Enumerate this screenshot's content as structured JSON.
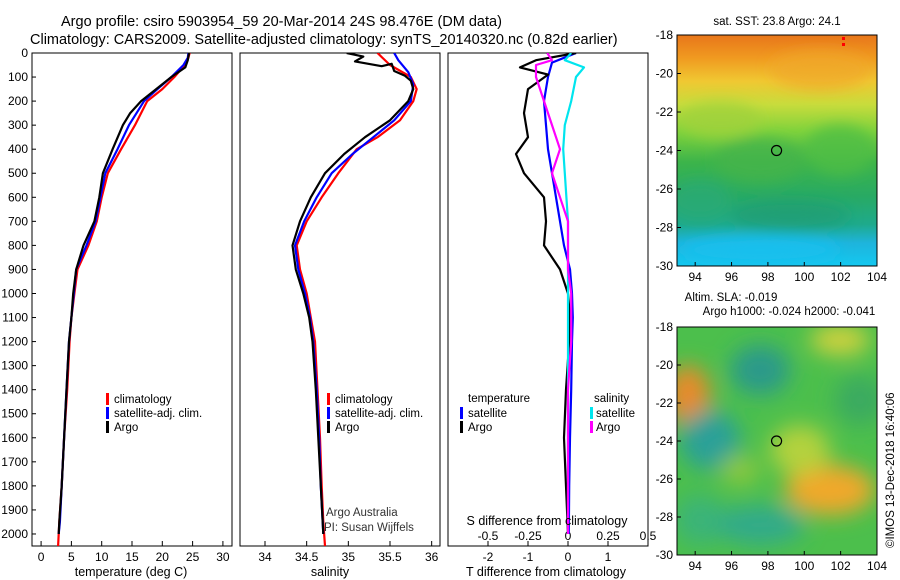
{
  "figure": {
    "title_line1": "Argo profile: csiro 5903954_59 20-Mar-2014 24S 98.476E (DM data)",
    "title_line2": "Climatology: CARS2009. Satellite-adjusted climatology: synTS_20140320.nc (0.82d earlier)",
    "watermark": "©IMOS 13-Dec-2018 16:40:06",
    "credit_line1": "Argo Australia",
    "credit_line2": "PI: Susan Wijffels"
  },
  "colors": {
    "climatology": "#ff0000",
    "satellite_adj": "#0000ff",
    "argo": "#000000",
    "salinity_satellite": "#00e5ee",
    "salinity_argo": "#ff00ff"
  },
  "chart_data": [
    {
      "id": "temperature",
      "type": "line",
      "xlabel": "temperature (deg C)",
      "ylabel": "",
      "xlim": [
        -1.5,
        31.5
      ],
      "ylim": [
        2050,
        0
      ],
      "xticks": [
        0,
        5,
        10,
        15,
        20,
        25,
        30
      ],
      "yticks": [
        0,
        100,
        200,
        300,
        400,
        500,
        600,
        700,
        800,
        900,
        1000,
        1100,
        1200,
        1300,
        1400,
        1500,
        1600,
        1700,
        1800,
        1900,
        2000
      ],
      "legend": [
        "climatology",
        "satellite-adj. clim.",
        "Argo"
      ],
      "legend_location": "lower-center",
      "series": [
        {
          "name": "climatology",
          "points": [
            [
              24.5,
              0
            ],
            [
              24.3,
              20
            ],
            [
              23.7,
              50
            ],
            [
              22,
              100
            ],
            [
              20,
              150
            ],
            [
              17.5,
              200
            ],
            [
              15.5,
              300
            ],
            [
              13.2,
              400
            ],
            [
              11,
              500
            ],
            [
              10,
              600
            ],
            [
              9.2,
              700
            ],
            [
              7.8,
              800
            ],
            [
              6,
              900
            ],
            [
              5.5,
              1000
            ],
            [
              5,
              1100
            ],
            [
              4.7,
              1200
            ],
            [
              4.3,
              1400
            ],
            [
              3.8,
              1600
            ],
            [
              3.4,
              1800
            ],
            [
              3,
              1950
            ],
            [
              2.8,
              2050
            ]
          ]
        },
        {
          "name": "satellite-adj. clim.",
          "points": [
            [
              24.3,
              0
            ],
            [
              24.2,
              20
            ],
            [
              23.5,
              50
            ],
            [
              21.5,
              100
            ],
            [
              19.2,
              150
            ],
            [
              17,
              200
            ],
            [
              14.5,
              300
            ],
            [
              12.6,
              400
            ],
            [
              10.6,
              500
            ],
            [
              9.8,
              600
            ],
            [
              9,
              700
            ],
            [
              7.5,
              800
            ],
            [
              5.8,
              900
            ],
            [
              5.4,
              1000
            ],
            [
              5,
              1100
            ],
            [
              4.6,
              1200
            ],
            [
              4.2,
              1400
            ],
            [
              3.8,
              1600
            ],
            [
              3.4,
              1800
            ],
            [
              3.1,
              1950
            ],
            [
              2.9,
              2000
            ]
          ]
        },
        {
          "name": "Argo",
          "points": [
            [
              24.4,
              0
            ],
            [
              24.2,
              30
            ],
            [
              23.8,
              60
            ],
            [
              21.5,
              100
            ],
            [
              19,
              150
            ],
            [
              16.5,
              200
            ],
            [
              14.7,
              250
            ],
            [
              13.5,
              300
            ],
            [
              11.8,
              400
            ],
            [
              10.2,
              500
            ],
            [
              9.6,
              600
            ],
            [
              8.8,
              700
            ],
            [
              7,
              800
            ],
            [
              5.8,
              900
            ],
            [
              5.3,
              1000
            ],
            [
              5,
              1100
            ],
            [
              4.6,
              1200
            ],
            [
              4.2,
              1400
            ],
            [
              3.8,
              1600
            ],
            [
              3.4,
              1800
            ],
            [
              3,
              1950
            ],
            [
              2.9,
              2000
            ]
          ]
        }
      ]
    },
    {
      "id": "salinity",
      "type": "line",
      "xlabel": "salinity",
      "ylabel": "",
      "xlim": [
        33.7,
        36.1
      ],
      "ylim": [
        2050,
        0
      ],
      "xticks": [
        34,
        34.5,
        35,
        35.5,
        36
      ],
      "legend": [
        "climatology",
        "satellite-adj. clim.",
        "Argo"
      ],
      "legend_location": "lower-center",
      "series": [
        {
          "name": "climatology",
          "points": [
            [
              35.35,
              0
            ],
            [
              35.5,
              50
            ],
            [
              35.75,
              100
            ],
            [
              35.82,
              150
            ],
            [
              35.78,
              200
            ],
            [
              35.62,
              280
            ],
            [
              35.35,
              350
            ],
            [
              35.1,
              400
            ],
            [
              34.88,
              500
            ],
            [
              34.68,
              600
            ],
            [
              34.5,
              700
            ],
            [
              34.38,
              800
            ],
            [
              34.42,
              900
            ],
            [
              34.5,
              1000
            ],
            [
              34.55,
              1100
            ],
            [
              34.6,
              1200
            ],
            [
              34.63,
              1400
            ],
            [
              34.66,
              1600
            ],
            [
              34.68,
              1800
            ],
            [
              34.7,
              1950
            ],
            [
              34.72,
              2050
            ]
          ]
        },
        {
          "name": "satellite-adj. clim.",
          "points": [
            [
              35.55,
              0
            ],
            [
              35.6,
              30
            ],
            [
              35.72,
              80
            ],
            [
              35.78,
              130
            ],
            [
              35.75,
              200
            ],
            [
              35.55,
              280
            ],
            [
              35.3,
              350
            ],
            [
              35.05,
              420
            ],
            [
              34.8,
              500
            ],
            [
              34.62,
              600
            ],
            [
              34.47,
              700
            ],
            [
              34.36,
              800
            ],
            [
              34.4,
              900
            ],
            [
              34.48,
              1000
            ],
            [
              34.54,
              1100
            ],
            [
              34.58,
              1200
            ],
            [
              34.62,
              1400
            ],
            [
              34.65,
              1600
            ],
            [
              34.67,
              1800
            ],
            [
              34.7,
              2000
            ]
          ]
        },
        {
          "name": "Argo",
          "points": [
            [
              34.98,
              0
            ],
            [
              35.18,
              15
            ],
            [
              35.08,
              35
            ],
            [
              35.4,
              55
            ],
            [
              35.52,
              45
            ],
            [
              35.55,
              75
            ],
            [
              35.68,
              95
            ],
            [
              35.75,
              115
            ],
            [
              35.78,
              150
            ],
            [
              35.72,
              200
            ],
            [
              35.5,
              280
            ],
            [
              35.2,
              350
            ],
            [
              34.95,
              420
            ],
            [
              34.72,
              500
            ],
            [
              34.55,
              600
            ],
            [
              34.42,
              700
            ],
            [
              34.33,
              800
            ],
            [
              34.37,
              900
            ],
            [
              34.46,
              1000
            ],
            [
              34.53,
              1100
            ],
            [
              34.57,
              1200
            ],
            [
              34.61,
              1400
            ],
            [
              34.64,
              1600
            ],
            [
              34.67,
              1800
            ],
            [
              34.7,
              2000
            ]
          ]
        }
      ]
    },
    {
      "id": "difference",
      "type": "line",
      "xlabel": "T difference from climatology",
      "xlabel2": "S difference from climatology",
      "ylabel": "",
      "xlim": [
        -3,
        2
      ],
      "x2lim": [
        -0.75,
        0.5
      ],
      "ylim": [
        2050,
        0
      ],
      "xticks": [
        -2,
        -1,
        0,
        1
      ],
      "xticks_top": [
        "-0.5",
        "-0.25",
        "0",
        "0.25",
        "0.5"
      ],
      "legend_temperature_title": "temperature",
      "legend_salinity_title": "salinity",
      "legend_temperature": [
        "satellite",
        "Argo"
      ],
      "legend_salinity": [
        "satellite",
        "Argo"
      ],
      "legend_location": "lower-center",
      "series": [
        {
          "name": "T satellite",
          "points": [
            [
              0.2,
              0
            ],
            [
              -0.1,
              20
            ],
            [
              -0.4,
              40
            ],
            [
              -0.5,
              100
            ],
            [
              -0.6,
              200
            ],
            [
              -0.55,
              300
            ],
            [
              -0.5,
              400
            ],
            [
              -0.4,
              500
            ],
            [
              -0.3,
              600
            ],
            [
              -0.2,
              700
            ],
            [
              -0.1,
              800
            ],
            [
              0.05,
              900
            ],
            [
              0.1,
              1000
            ],
            [
              0.12,
              1100
            ],
            [
              0.1,
              1200
            ],
            [
              0.08,
              1400
            ],
            [
              0.05,
              1600
            ],
            [
              0.03,
              1800
            ],
            [
              0.02,
              2000
            ]
          ]
        },
        {
          "name": "T Argo",
          "points": [
            [
              0.2,
              0
            ],
            [
              -0.8,
              30
            ],
            [
              -1.2,
              60
            ],
            [
              -0.5,
              90
            ],
            [
              -1.0,
              150
            ],
            [
              -1.1,
              250
            ],
            [
              -1.0,
              350
            ],
            [
              -1.3,
              420
            ],
            [
              -1.1,
              500
            ],
            [
              -0.6,
              600
            ],
            [
              -0.55,
              700
            ],
            [
              -0.6,
              800
            ],
            [
              -0.2,
              900
            ],
            [
              0.0,
              1000
            ],
            [
              0.05,
              1100
            ],
            [
              0.03,
              1200
            ],
            [
              -0.05,
              1400
            ],
            [
              -0.1,
              1600
            ],
            [
              -0.05,
              1800
            ],
            [
              0.0,
              2000
            ]
          ]
        },
        {
          "name": "S satellite",
          "points": [
            [
              0.02,
              0
            ],
            [
              -0.02,
              30
            ],
            [
              0.1,
              60
            ],
            [
              0.05,
              100
            ],
            [
              0.02,
              200
            ],
            [
              -0.02,
              300
            ],
            [
              -0.03,
              400
            ],
            [
              -0.02,
              500
            ],
            [
              -0.01,
              600
            ],
            [
              0.0,
              700
            ],
            [
              0.0,
              800
            ],
            [
              0.0,
              900
            ],
            [
              0.0,
              1000
            ],
            [
              0.0,
              1200
            ],
            [
              0.0,
              1400
            ],
            [
              0.0,
              1600
            ],
            [
              0.0,
              1800
            ],
            [
              0.0,
              2000
            ]
          ]
        },
        {
          "name": "S Argo",
          "points": [
            [
              -0.13,
              0
            ],
            [
              -0.1,
              30
            ],
            [
              -0.2,
              50
            ],
            [
              -0.2,
              100
            ],
            [
              -0.15,
              200
            ],
            [
              -0.1,
              300
            ],
            [
              -0.05,
              400
            ],
            [
              -0.1,
              500
            ],
            [
              -0.05,
              600
            ],
            [
              0.0,
              700
            ],
            [
              0.0,
              800
            ],
            [
              0.0,
              900
            ],
            [
              0.02,
              1000
            ],
            [
              0.02,
              1200
            ],
            [
              0.0,
              1400
            ],
            [
              0.0,
              1600
            ],
            [
              0.0,
              1800
            ],
            [
              0.0,
              2000
            ]
          ]
        }
      ]
    },
    {
      "id": "sst_map",
      "type": "heatmap",
      "title": "sat. SST: 23.8 Argo: 24.1",
      "xlim": [
        93,
        104
      ],
      "ylim": [
        -30,
        -18
      ],
      "xticks": [
        94,
        96,
        98,
        100,
        102,
        104
      ],
      "yticks": [
        -18,
        -20,
        -22,
        -24,
        -26,
        -28,
        -30
      ],
      "marker": [
        98.476,
        -24
      ]
    },
    {
      "id": "sla_map",
      "type": "heatmap",
      "title_line1": "Altim. SLA: -0.019",
      "title_line2": "Argo h1000: -0.024 h2000: -0.041",
      "xlim": [
        93,
        104
      ],
      "ylim": [
        -30,
        -18
      ],
      "xticks": [
        94,
        96,
        98,
        100,
        102,
        104
      ],
      "yticks": [
        -18,
        -20,
        -22,
        -24,
        -26,
        -28,
        -30
      ],
      "marker": [
        98.476,
        -24
      ]
    }
  ]
}
